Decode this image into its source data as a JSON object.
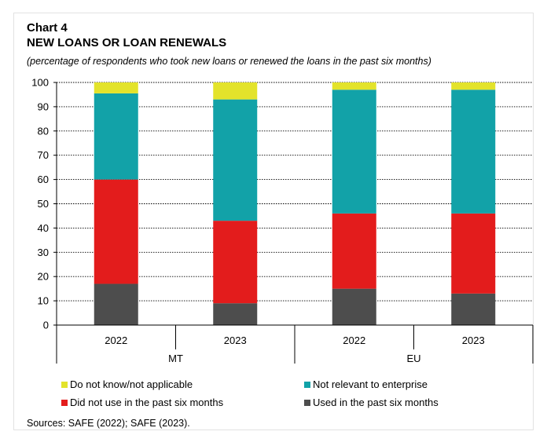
{
  "title_line1": "Chart 4",
  "title_line2": "NEW LOANS OR LOAN RENEWALS",
  "subtitle": "(percentage of respondents who took new loans or renewed the loans in the past six months)",
  "source": "Sources: SAFE (2022); SAFE (2023).",
  "chart_data": {
    "type": "bar",
    "stacked": true,
    "groups": [
      "MT",
      "EU"
    ],
    "categories": [
      "2022",
      "2023",
      "2022",
      "2023"
    ],
    "category_groups": [
      "MT",
      "MT",
      "EU",
      "EU"
    ],
    "series": [
      {
        "name": "Used in the past six months",
        "color": "#4d4d4d",
        "values": [
          17,
          9,
          15,
          13
        ]
      },
      {
        "name": "Did not use in the past six months",
        "color": "#e31c1c",
        "values": [
          43,
          34,
          31,
          33
        ]
      },
      {
        "name": "Not relevant to enterprise",
        "color": "#12a2a8",
        "values": [
          35.5,
          50,
          51,
          51
        ]
      },
      {
        "name": "Do not know/not applicable",
        "color": "#e3e32b",
        "values": [
          4.5,
          7,
          3,
          3
        ]
      }
    ],
    "ylim": [
      0,
      100
    ],
    "yticks": [
      "0",
      "10",
      "20",
      "30",
      "40",
      "50",
      "60",
      "70",
      "80",
      "90",
      "100"
    ],
    "grid": true,
    "legend_position": "bottom"
  },
  "legend": [
    {
      "label": "Do not know/not applicable",
      "color": "#e3e32b"
    },
    {
      "label": "Not relevant to enterprise",
      "color": "#12a2a8"
    },
    {
      "label": "Did not use in the past six months",
      "color": "#e31c1c"
    },
    {
      "label": "Used in the past six months",
      "color": "#4d4d4d"
    }
  ]
}
